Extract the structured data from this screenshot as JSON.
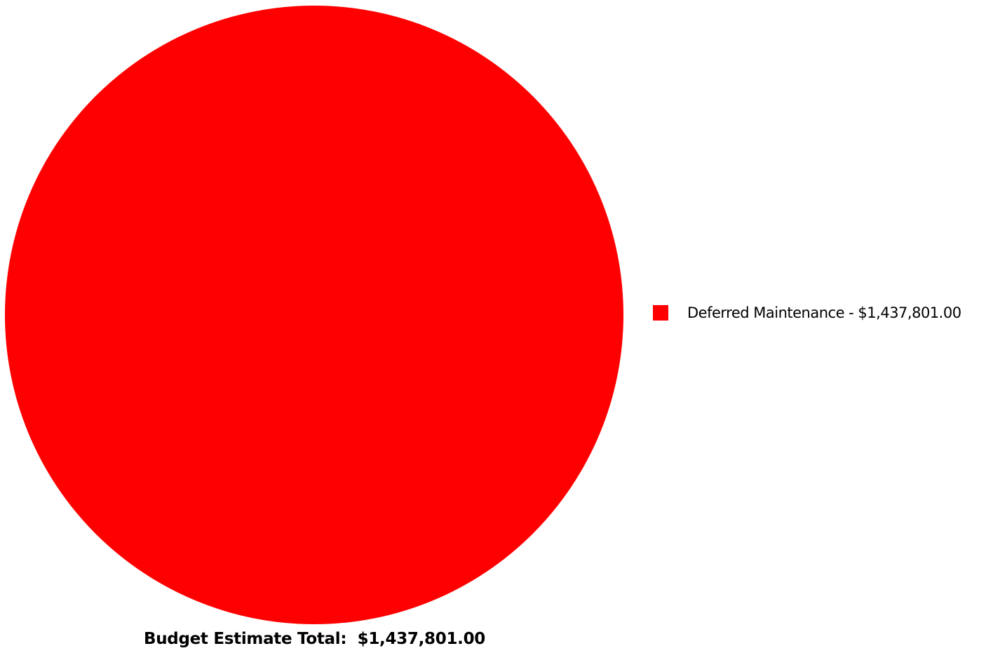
{
  "chart_data": {
    "type": "pie",
    "categories": [
      "Deferred Maintenance"
    ],
    "values": [
      1437801.0
    ],
    "colors": [
      "#ff0000"
    ],
    "legend": {
      "placement": "right",
      "entries": [
        "Deferred Maintenance - $1,437,801.00"
      ]
    },
    "total_label": "Budget Estimate Total:  $1,437,801.00"
  }
}
